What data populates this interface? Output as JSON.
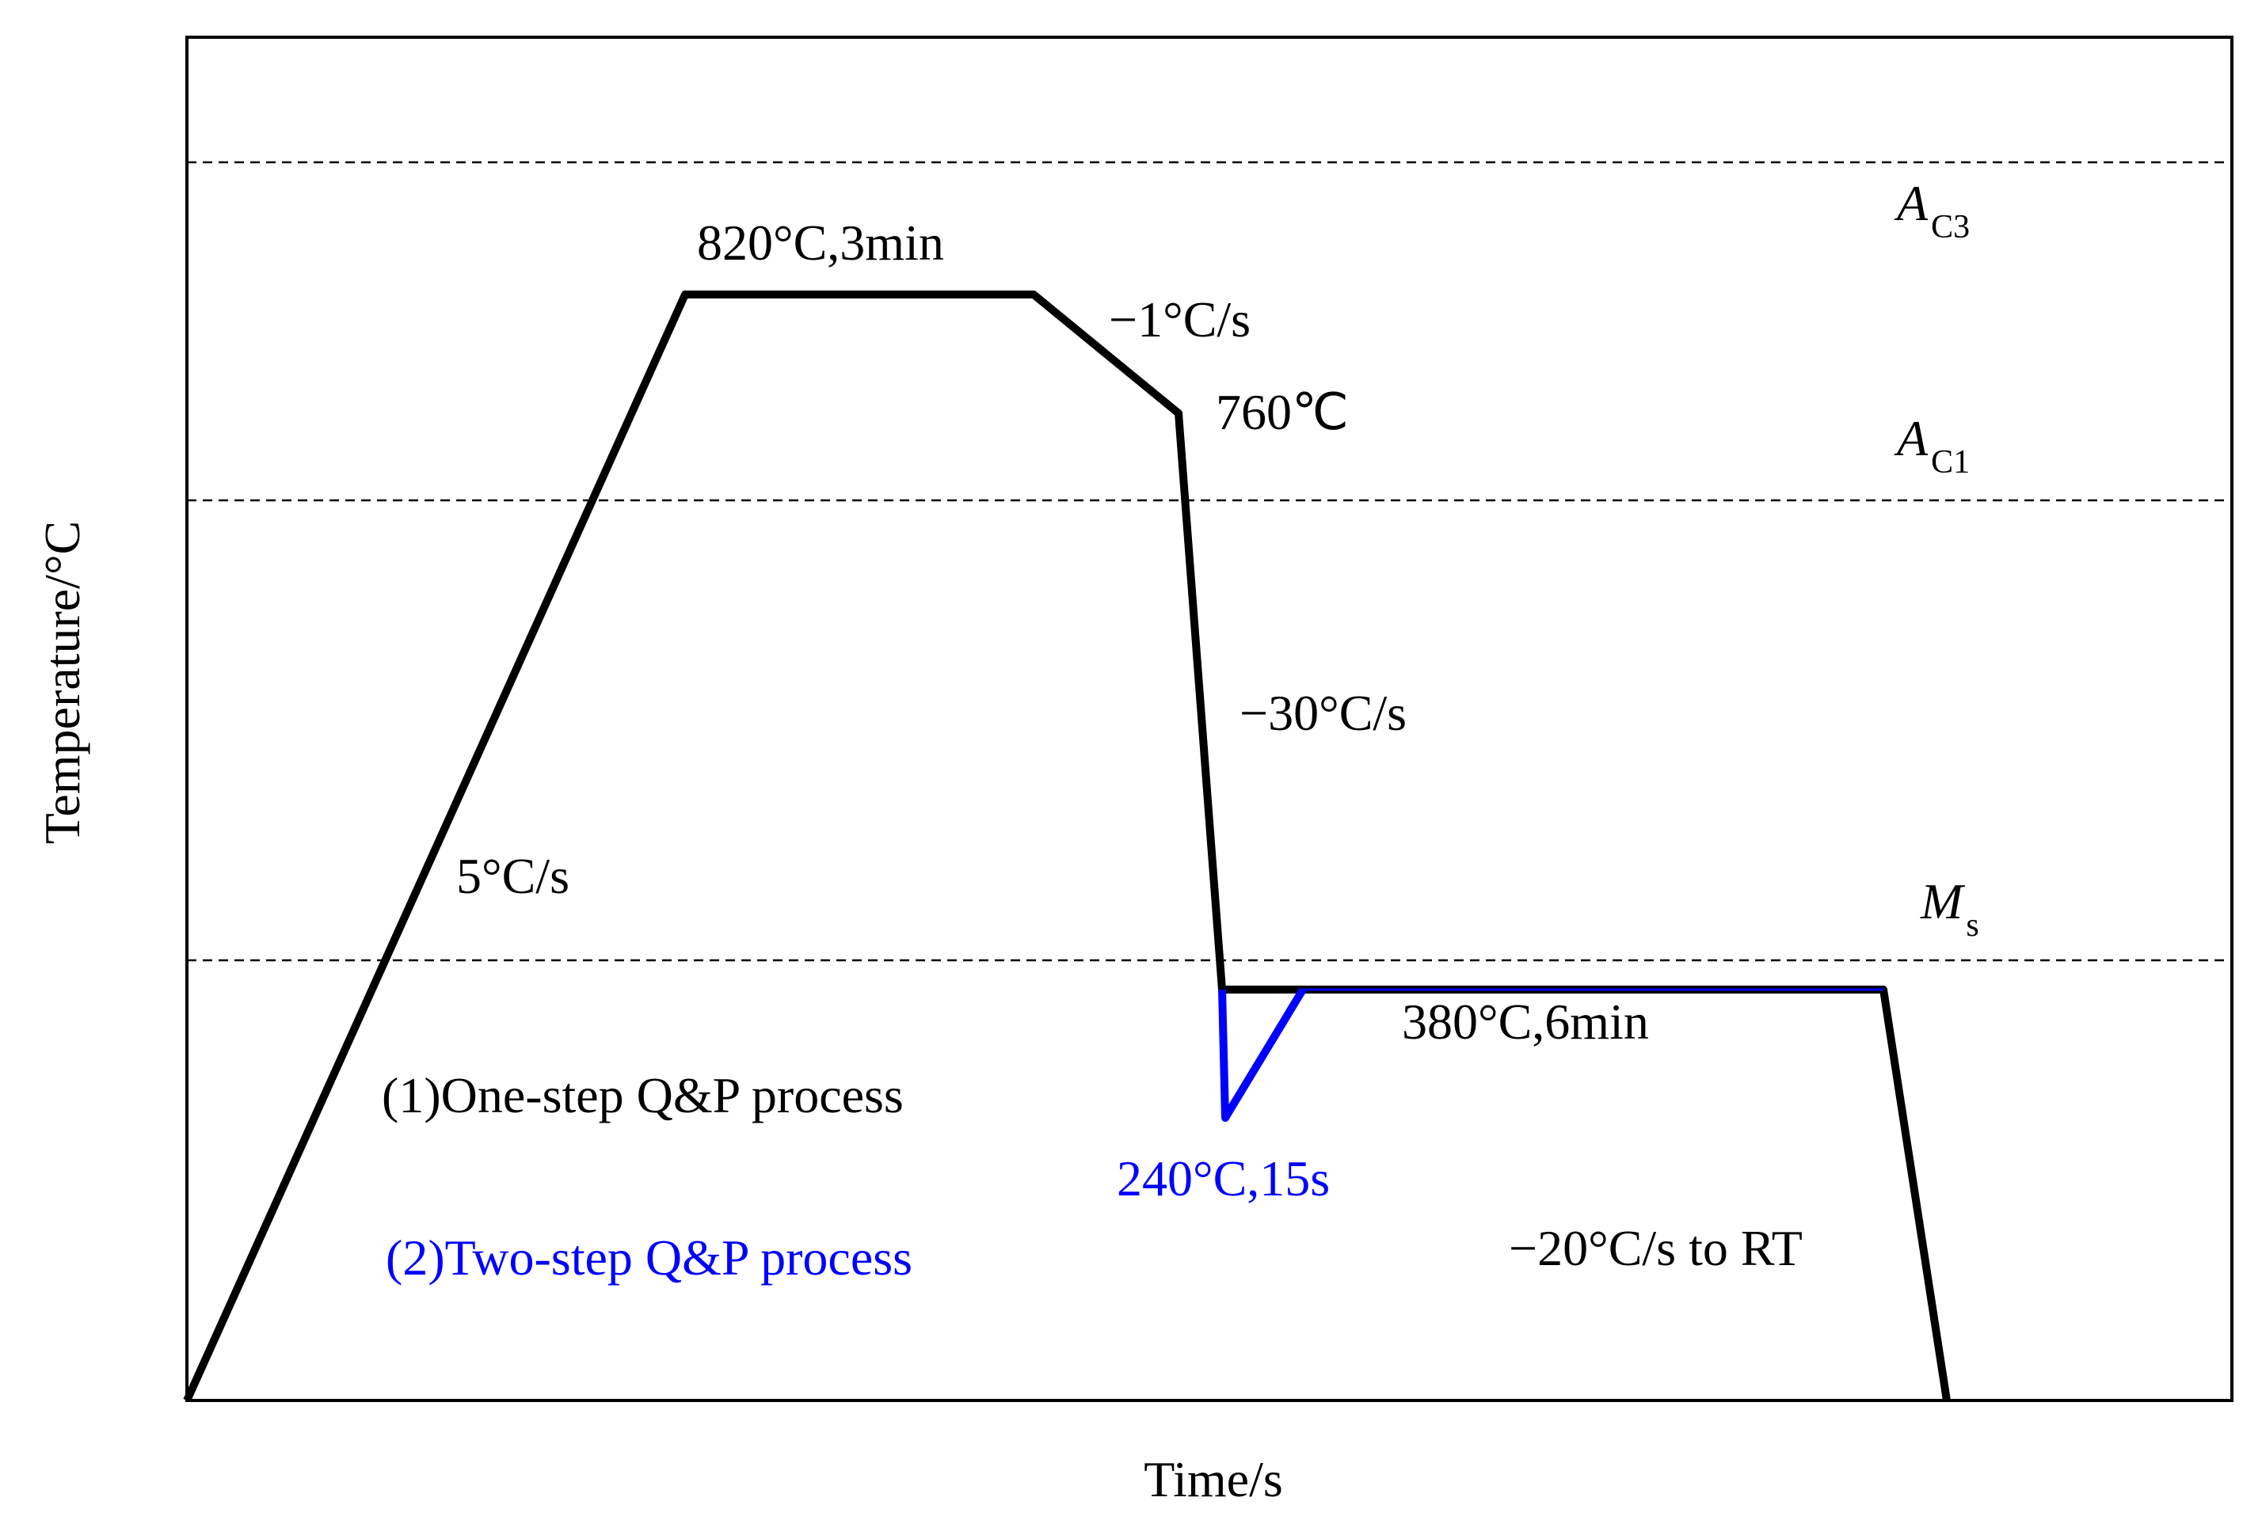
{
  "axes": {
    "x_label": "Time/s",
    "y_label": "Temperature/°C"
  },
  "critical_temps": {
    "ac3": {
      "main": "A",
      "sub": "C3"
    },
    "ac1": {
      "main": "A",
      "sub": "C1"
    },
    "ms": {
      "main": "M",
      "sub": "s"
    }
  },
  "process_labels": {
    "heating_rate": "5°C/s",
    "austenitize": "820°C,3min",
    "slow_cool_rate": "−1°C/s",
    "intercritical": "760℃",
    "quench_rate": "−30°C/s",
    "partition": "380°C,6min",
    "two_step_quench": "240°C,15s",
    "final_cool": "−20°C/s to RT"
  },
  "legend": {
    "one_step": "(1)One-step Q&P process",
    "two_step": "(2)Two-step Q&P process"
  },
  "colors": {
    "one_step": "#000000",
    "two_step": "#0000ff"
  }
}
